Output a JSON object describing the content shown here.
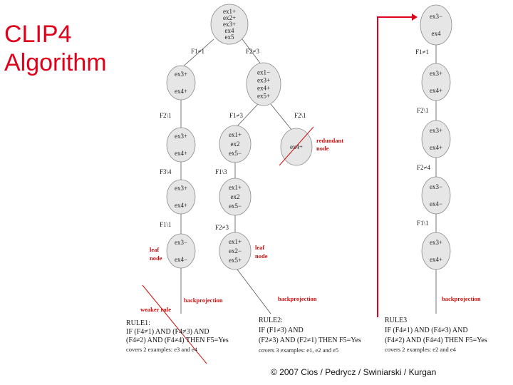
{
  "title": "CLIP4\nAlgorithm",
  "copyright": "© 2007 Cios / Pedrycz / Swiniarski / Kurgan",
  "accent_color": "#e0001b",
  "nodes": [
    {
      "id": "root",
      "lines": [
        "ex1+",
        "ex2+",
        "ex3+",
        "ex4",
        "ex5"
      ]
    },
    {
      "id": "L1a",
      "lines": [
        "ex3+",
        "ex4+"
      ]
    },
    {
      "id": "L1b",
      "lines": [
        "ex1−",
        "ex3+",
        "ex4+",
        "ex5+"
      ]
    },
    {
      "id": "L2a",
      "lines": [
        "ex3+",
        "ex4+"
      ]
    },
    {
      "id": "L2b",
      "lines": [
        "ex1+",
        "ex2",
        "ex5−"
      ]
    },
    {
      "id": "L2c",
      "lines": [
        "ex4+"
      ]
    },
    {
      "id": "L3a",
      "lines": [
        "ex3+",
        "ex4+"
      ]
    },
    {
      "id": "L3b",
      "lines": [
        "ex1+",
        "ex2",
        "ex5−"
      ]
    },
    {
      "id": "L4a",
      "lines": [
        "ex3−",
        "ex4−"
      ]
    },
    {
      "id": "L4b",
      "lines": [
        "ex1+",
        "ex2−",
        "ex5+"
      ]
    },
    {
      "id": "R0",
      "lines": [
        "ex3−",
        "ex4"
      ]
    },
    {
      "id": "R1",
      "lines": [
        "ex3+",
        "ex4+"
      ]
    },
    {
      "id": "R2",
      "lines": [
        "ex3+",
        "ex4+"
      ]
    },
    {
      "id": "R3",
      "lines": [
        "ex3−",
        "ex4−"
      ]
    },
    {
      "id": "R4",
      "lines": [
        "ex3+",
        "ex4+"
      ]
    }
  ],
  "edge_labels": [
    {
      "id": "e_root_L1a",
      "text": "F1≠1"
    },
    {
      "id": "e_root_L1b",
      "text": "F2≠3"
    },
    {
      "id": "e_L1a_L2a",
      "text": "F2\\1"
    },
    {
      "id": "e_L1b_L2b",
      "text": "F1≠3"
    },
    {
      "id": "e_L1b_L2c",
      "text": "F2\\1"
    },
    {
      "id": "e_L2a_L3a",
      "text": "F3\\4"
    },
    {
      "id": "e_L2b_L3b",
      "text": "F1\\3"
    },
    {
      "id": "e_L3a_L4a",
      "text": "F1\\1"
    },
    {
      "id": "e_L3b_L4b",
      "text": "F2≠3"
    },
    {
      "id": "e_R0_R1",
      "text": "F1≠1"
    },
    {
      "id": "e_R1_R2",
      "text": "F2\\1"
    },
    {
      "id": "e_R2_R3",
      "text": "F2≠4"
    },
    {
      "id": "e_R3_R4",
      "text": "F1\\1"
    }
  ],
  "annotations": {
    "redundant_node": [
      "redundant",
      "node"
    ],
    "leaf_node_left": [
      "leaf",
      "node"
    ],
    "leaf_node_mid": [
      "leaf",
      "node"
    ],
    "weaker_rule": "weaker rule",
    "backprojection_1": "backprojection",
    "backprojection_2": "backprojection",
    "backprojection_3": "backprojection"
  },
  "rules": {
    "rule1": {
      "name": "RULE1:",
      "line1": "IF (F4≠1) AND (F4≠3) AND",
      "line2": "(F4≠2) AND (F4≠4) THEN F5=Yes",
      "line3": "covers 2 examples: e3 and e4"
    },
    "rule2": {
      "name": "RULE2:",
      "line1": "IF (F1≠3) AND",
      "line2": "(F2≠3) AND (F2≠1) THEN F5=Yes",
      "line3": "covers 3 examples: e1, e2 and e5"
    },
    "rule3": {
      "name": "RULE3",
      "line1": "IF (F4≠1) AND (F4≠3) AND",
      "line2": "(F4≠2) AND (F4≠4) THEN F5=Yes",
      "line3": "covers 2 examples: e2 and e4"
    }
  }
}
